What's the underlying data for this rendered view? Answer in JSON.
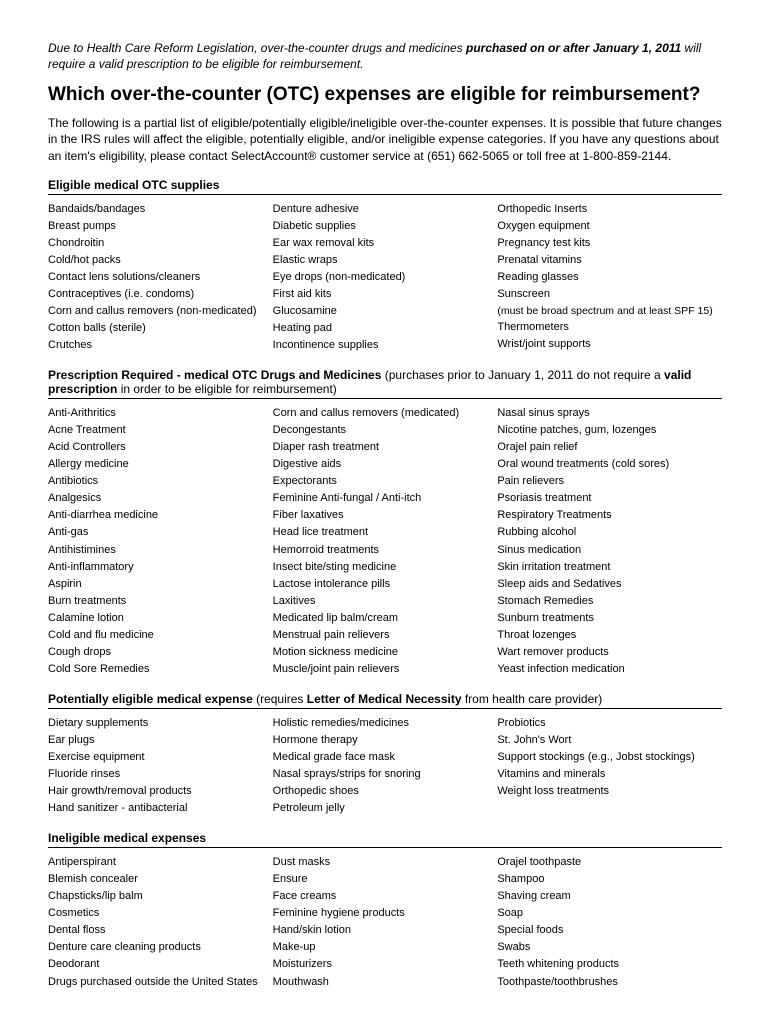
{
  "notice": {
    "pre": "Due to Health Care Reform Legislation, over-the-counter drugs and medicines ",
    "bold": "purchased on or after January 1, 2011",
    "post": " will require a valid prescription to be eligible for reimbursement."
  },
  "title": "Which over-the-counter (OTC) expenses are eligible for reimbursement?",
  "intro": "The following is a partial list of eligible/potentially eligible/ineligible over-the-counter expenses. It is possible that future changes in the IRS rules will affect the eligible, potentially eligible, and/or ineligible expense categories. If you have any questions about an item's eligibility, please contact SelectAccount® customer service at (651) 662-5065 or toll free at 1-800-859-2144.",
  "sections": {
    "eligible": {
      "header_bold": "Eligible medical OTC supplies",
      "header_rest": "",
      "col1": [
        "Bandaids/bandages",
        "Breast pumps",
        "Chondroitin",
        "Cold/hot packs",
        "Contact lens solutions/cleaners",
        "Contraceptives (i.e. condoms)",
        "Corn and callus removers (non-medicated)",
        "Cotton balls (sterile)",
        "Crutches"
      ],
      "col2": [
        "Denture adhesive",
        "Diabetic supplies",
        "Ear wax removal kits",
        "Elastic wraps",
        "Eye drops (non-medicated)",
        "First aid kits",
        "Glucosamine",
        "Heating pad",
        "Incontinence supplies"
      ],
      "col3": [
        "Orthopedic Inserts",
        "Oxygen equipment",
        "Pregnancy test kits",
        "Prenatal vitamins",
        "Reading glasses",
        "Sunscreen",
        "(must be broad spectrum and at least SPF 15)",
        "Thermometers",
        "Wrist/joint supports"
      ]
    },
    "prescription": {
      "header_bold1": "Prescription Required - medical OTC Drugs and Medicines",
      "header_mid": " (purchases prior to January 1, 2011 do not require a ",
      "header_bold2": "valid prescription",
      "header_end": " in order to be eligible for reimbursement)",
      "col1": [
        "Anti-Arithritics",
        "Acne Treatment",
        "Acid Controllers",
        "Allergy medicine",
        "Antibiotics",
        "Analgesics",
        "Anti-diarrhea medicine",
        "Anti-gas",
        "Antihistimines",
        "Anti-inflammatory",
        "Aspirin",
        "Burn treatments",
        "Calamine lotion",
        "Cold and flu medicine",
        "Cough drops",
        "Cold Sore Remedies"
      ],
      "col2": [
        "Corn and callus removers (medicated)",
        "Decongestants",
        "Diaper rash treatment",
        "Digestive aids",
        "Expectorants",
        "Feminine Anti-fungal / Anti-itch",
        "Fiber laxatives",
        "Head lice treatment",
        "Hemorroid treatments",
        "Insect bite/sting medicine",
        "Lactose intolerance pills",
        "Laxitives",
        "Medicated lip balm/cream",
        "Menstrual pain relievers",
        "Motion sickness medicine",
        "Muscle/joint pain relievers"
      ],
      "col3": [
        "Nasal sinus sprays",
        "Nicotine patches, gum, lozenges",
        "Orajel pain relief",
        "Oral wound treatments (cold sores)",
        "Pain relievers",
        "Psoriasis treatment",
        "Respiratory Treatments",
        "Rubbing alcohol",
        "Sinus medication",
        "Skin irritation treatment",
        "Sleep aids and Sedatives",
        "Stomach Remedies",
        "Sunburn treatments",
        "Throat lozenges",
        "Wart remover products",
        "Yeast infection medication"
      ]
    },
    "potentially": {
      "header_bold1": "Potentially eligible medical expense",
      "header_mid": " (requires ",
      "header_bold2": "Letter of Medical Necessity",
      "header_end": " from health care provider)",
      "col1": [
        "Dietary supplements",
        "Ear plugs",
        "Exercise equipment",
        "Fluoride rinses",
        "Hair growth/removal products",
        "Hand sanitizer - antibacterial"
      ],
      "col2": [
        "Holistic remedies/medicines",
        "Hormone therapy",
        "Medical grade face mask",
        "Nasal sprays/strips for snoring",
        "Orthopedic shoes",
        "Petroleum jelly"
      ],
      "col3": [
        "Probiotics",
        "St. John's Wort",
        "Support stockings (e.g., Jobst stockings)",
        "Vitamins and minerals",
        "Weight loss treatments"
      ]
    },
    "ineligible": {
      "header_bold": "Ineligible medical expenses",
      "col1": [
        "Antiperspirant",
        "Blemish concealer",
        "Chapsticks/lip balm",
        "Cosmetics",
        "Dental floss",
        "Denture care cleaning products",
        "Deodorant",
        "Drugs purchased outside the United States"
      ],
      "col2": [
        "Dust masks",
        "Ensure",
        "Face creams",
        "Feminine hygiene products",
        "Hand/skin lotion",
        "Make-up",
        "Moisturizers",
        "Mouthwash"
      ],
      "col3": [
        "Orajel toothpaste",
        "Shampoo",
        "Shaving cream",
        "Soap",
        "Special foods",
        "Swabs",
        "Teeth whitening products",
        "Toothpaste/toothbrushes"
      ]
    }
  }
}
